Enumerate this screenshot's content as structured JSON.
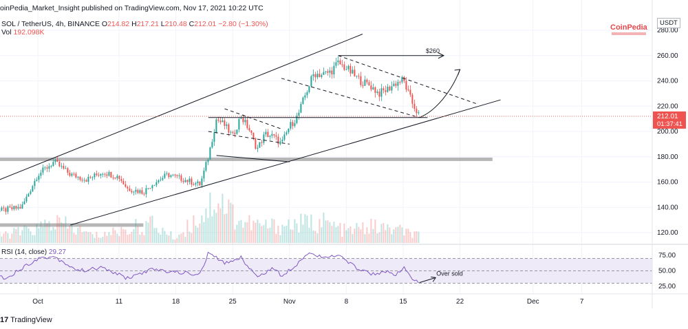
{
  "header": {
    "publisher_line": "oinPedia_Market_Insight published on TradingView.com, Nov 17, 2021 10:22 UTC",
    "symbol": "SOL / TetherUS, 4h, BINANCE",
    "ohlc": {
      "o_label": "O",
      "o": "214.82",
      "h_label": "H",
      "h": "217.21",
      "l_label": "L",
      "l": "210.48",
      "c_label": "C",
      "c": "212.01",
      "change": "−2.80 (−1.30%)"
    },
    "volume_label": "Vol",
    "volume": "192.098K",
    "rsi_label": "RSI (14, close)",
    "rsi_value": "29.27",
    "currency_button": "USDT",
    "brand": "CoinPedia"
  },
  "footer": {
    "logo_text": "TradingView",
    "logo_mark": "17"
  },
  "annotations": {
    "target_label": "$260",
    "oversold_label": "Over sold"
  },
  "colors": {
    "up": "#26a69a",
    "down": "#ef5350",
    "rsi_line": "#7e57c2",
    "rsi_band": "#efeaf8",
    "price_tag": "#ef5350",
    "zone": "#9e9e9e"
  },
  "chart_data": [
    {
      "type": "candlestick",
      "title": "SOL / TetherUS, 4h, BINANCE",
      "ylim": [
        112,
        290
      ],
      "y_ticks": [
        120,
        140,
        160,
        180,
        200,
        220,
        240,
        260,
        280
      ],
      "x_tick_labels": [
        {
          "label": "Oct",
          "date": "2021-10-01"
        },
        {
          "label": "11",
          "date": "2021-10-11"
        },
        {
          "label": "18",
          "date": "2021-10-18"
        },
        {
          "label": "25",
          "date": "2021-10-25"
        },
        {
          "label": "Nov",
          "date": "2021-11-01"
        },
        {
          "label": "8",
          "date": "2021-11-08"
        },
        {
          "label": "15",
          "date": "2021-11-15"
        },
        {
          "label": "22",
          "date": "2021-11-22"
        },
        {
          "label": "Dec",
          "date": "2021-12-01"
        },
        {
          "label": "7",
          "date": "2021-12-07"
        }
      ],
      "price_path": [
        {
          "date": "2021-09-24",
          "price": 142
        },
        {
          "date": "2021-09-26",
          "price": 137
        },
        {
          "date": "2021-09-29",
          "price": 140
        },
        {
          "date": "2021-10-01",
          "price": 166
        },
        {
          "date": "2021-10-03",
          "price": 176
        },
        {
          "date": "2021-10-05",
          "price": 166
        },
        {
          "date": "2021-10-07",
          "price": 162
        },
        {
          "date": "2021-10-09",
          "price": 168
        },
        {
          "date": "2021-10-11",
          "price": 164
        },
        {
          "date": "2021-10-12",
          "price": 155
        },
        {
          "date": "2021-10-14",
          "price": 152
        },
        {
          "date": "2021-10-15",
          "price": 158
        },
        {
          "date": "2021-10-17",
          "price": 166
        },
        {
          "date": "2021-10-18",
          "price": 164
        },
        {
          "date": "2021-10-20",
          "price": 160
        },
        {
          "date": "2021-10-21",
          "price": 158
        },
        {
          "date": "2021-10-22",
          "price": 180
        },
        {
          "date": "2021-10-23",
          "price": 210
        },
        {
          "date": "2021-10-24",
          "price": 205
        },
        {
          "date": "2021-10-25",
          "price": 196
        },
        {
          "date": "2021-10-26",
          "price": 212
        },
        {
          "date": "2021-10-27",
          "price": 202
        },
        {
          "date": "2021-10-28",
          "price": 186
        },
        {
          "date": "2021-10-29",
          "price": 198
        },
        {
          "date": "2021-10-30",
          "price": 196
        },
        {
          "date": "2021-10-31",
          "price": 190
        },
        {
          "date": "2021-11-01",
          "price": 204
        },
        {
          "date": "2021-11-02",
          "price": 212
        },
        {
          "date": "2021-11-03",
          "price": 230
        },
        {
          "date": "2021-11-04",
          "price": 246
        },
        {
          "date": "2021-11-05",
          "price": 245
        },
        {
          "date": "2021-11-06",
          "price": 247
        },
        {
          "date": "2021-11-07",
          "price": 254
        },
        {
          "date": "2021-11-08",
          "price": 250
        },
        {
          "date": "2021-11-09",
          "price": 244
        },
        {
          "date": "2021-11-10",
          "price": 239
        },
        {
          "date": "2021-11-11",
          "price": 236
        },
        {
          "date": "2021-11-12",
          "price": 230
        },
        {
          "date": "2021-11-13",
          "price": 233
        },
        {
          "date": "2021-11-14",
          "price": 238
        },
        {
          "date": "2021-11-15",
          "price": 241
        },
        {
          "date": "2021-11-16",
          "price": 224
        },
        {
          "date": "2021-11-17",
          "price": 212
        }
      ],
      "volume_path": [
        {
          "date": "2021-09-24",
          "volume": 0.1
        },
        {
          "date": "2021-10-01",
          "volume": 0.3
        },
        {
          "date": "2021-10-03",
          "volume": 0.45
        },
        {
          "date": "2021-10-08",
          "volume": 0.15
        },
        {
          "date": "2021-10-15",
          "volume": 0.4
        },
        {
          "date": "2021-10-18",
          "volume": 0.1
        },
        {
          "date": "2021-10-22",
          "volume": 0.75
        },
        {
          "date": "2021-10-23",
          "volume": 1.0
        },
        {
          "date": "2021-10-26",
          "volume": 0.45
        },
        {
          "date": "2021-10-29",
          "volume": 0.35
        },
        {
          "date": "2021-11-02",
          "volume": 0.4
        },
        {
          "date": "2021-11-05",
          "volume": 0.45
        },
        {
          "date": "2021-11-08",
          "volume": 0.25
        },
        {
          "date": "2021-11-11",
          "volume": 0.35
        },
        {
          "date": "2021-11-15",
          "volume": 0.25
        },
        {
          "date": "2021-11-17",
          "volume": 0.15
        }
      ],
      "lines": [
        {
          "name": "channel-upper",
          "style": "solid",
          "points": [
            {
              "date": "2021-09-24",
              "price": 156
            },
            {
              "date": "2021-11-10",
              "price": 277
            }
          ]
        },
        {
          "name": "channel-lower",
          "style": "solid",
          "points": [
            {
              "date": "2021-10-05",
              "price": 126
            },
            {
              "date": "2021-11-27",
              "price": 225
            }
          ]
        },
        {
          "name": "falling-wedge-top",
          "style": "dashed",
          "points": [
            {
              "date": "2021-10-24",
              "price": 218
            },
            {
              "date": "2021-10-31",
              "price": 202
            }
          ]
        },
        {
          "name": "falling-wedge-bottom",
          "style": "dashed",
          "points": [
            {
              "date": "2021-10-22",
              "price": 200
            },
            {
              "date": "2021-11-01",
              "price": 190
            }
          ]
        },
        {
          "name": "falling-channel-top",
          "style": "dashed",
          "points": [
            {
              "date": "2021-11-07",
              "price": 260
            },
            {
              "date": "2021-11-24",
              "price": 222
            }
          ]
        },
        {
          "name": "falling-channel-bottom",
          "style": "dashed",
          "points": [
            {
              "date": "2021-10-31",
              "price": 242
            },
            {
              "date": "2021-11-17",
              "price": 211
            }
          ]
        },
        {
          "name": "support-horizontal",
          "style": "solid",
          "points": [
            {
              "date": "2021-10-22",
              "price": 211
            },
            {
              "date": "2021-11-18",
              "price": 211
            }
          ]
        },
        {
          "name": "lower-wedge-line",
          "style": "solid",
          "points": [
            {
              "date": "2021-10-23",
              "price": 181
            },
            {
              "date": "2021-11-01",
              "price": 176
            }
          ]
        }
      ],
      "zones": [
        {
          "name": "support-zone-180",
          "price": 178,
          "from": "2021-09-24",
          "to": "2021-11-26"
        },
        {
          "name": "support-zone-126",
          "price": 126,
          "from": "2021-09-24",
          "to": "2021-10-14"
        }
      ],
      "target": {
        "price": 260,
        "from": "2021-11-07",
        "to": "2021-11-20",
        "label": "$260"
      },
      "projection": [
        {
          "date": "2021-11-17",
          "price": 211
        },
        {
          "date": "2021-11-19",
          "price": 216
        },
        {
          "date": "2021-11-21",
          "price": 232
        },
        {
          "date": "2021-11-22",
          "price": 249
        }
      ],
      "last_price": {
        "value": "212.01",
        "countdown": "01:37:41",
        "price": 212.01
      }
    },
    {
      "type": "line",
      "title": "RSI (14, close)",
      "ylim": [
        25,
        80
      ],
      "y_ticks": [
        25,
        50,
        75
      ],
      "levels": [
        30,
        50,
        70
      ],
      "rsi_path": [
        {
          "date": "2021-09-24",
          "rsi": 52
        },
        {
          "date": "2021-09-27",
          "rsi": 38
        },
        {
          "date": "2021-10-01",
          "rsi": 70
        },
        {
          "date": "2021-10-03",
          "rsi": 73
        },
        {
          "date": "2021-10-06",
          "rsi": 50
        },
        {
          "date": "2021-10-09",
          "rsi": 55
        },
        {
          "date": "2021-10-12",
          "rsi": 38
        },
        {
          "date": "2021-10-15",
          "rsi": 52
        },
        {
          "date": "2021-10-18",
          "rsi": 48
        },
        {
          "date": "2021-10-21",
          "rsi": 44
        },
        {
          "date": "2021-10-22",
          "rsi": 79
        },
        {
          "date": "2021-10-24",
          "rsi": 62
        },
        {
          "date": "2021-10-26",
          "rsi": 72
        },
        {
          "date": "2021-10-28",
          "rsi": 40
        },
        {
          "date": "2021-10-30",
          "rsi": 55
        },
        {
          "date": "2021-10-31",
          "rsi": 42
        },
        {
          "date": "2021-11-02",
          "rsi": 62
        },
        {
          "date": "2021-11-03",
          "rsi": 78
        },
        {
          "date": "2021-11-06",
          "rsi": 72
        },
        {
          "date": "2021-11-07",
          "rsi": 75
        },
        {
          "date": "2021-11-09",
          "rsi": 57
        },
        {
          "date": "2021-11-11",
          "rsi": 45
        },
        {
          "date": "2021-11-13",
          "rsi": 49
        },
        {
          "date": "2021-11-14",
          "rsi": 40
        },
        {
          "date": "2021-11-15",
          "rsi": 56
        },
        {
          "date": "2021-11-16",
          "rsi": 38
        },
        {
          "date": "2021-11-17",
          "rsi": 29
        }
      ],
      "annotation": {
        "label": "Over sold",
        "from": {
          "date": "2021-11-17",
          "rsi": 31
        },
        "to": {
          "date": "2021-11-19",
          "rsi": 39
        }
      }
    }
  ]
}
